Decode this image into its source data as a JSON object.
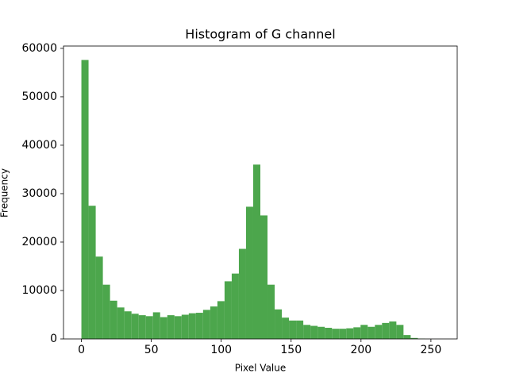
{
  "chart_data": {
    "type": "histogram",
    "title": "Histogram of G channel",
    "xlabel": "Pixel Value",
    "ylabel": "Frequency",
    "color": "#4ca64c",
    "bins": [
      0,
      5.12,
      10.24,
      15.36,
      20.48,
      25.6,
      30.72,
      35.84,
      40.96,
      46.08,
      51.2,
      56.32,
      61.44,
      66.56,
      71.68,
      76.8,
      81.92,
      87.04,
      92.16,
      97.28,
      102.4,
      107.52,
      112.64,
      117.76,
      122.88,
      128,
      133.12,
      138.24,
      143.36,
      148.48,
      153.6,
      158.72,
      163.84,
      168.96,
      174.08,
      179.2,
      184.32,
      189.44,
      194.56,
      199.68,
      204.8,
      209.92,
      215.04,
      220.16,
      225.28,
      230.4,
      235.52,
      240.64,
      245.76,
      250.88,
      256
    ],
    "values": [
      57600,
      27500,
      17000,
      11200,
      7900,
      6500,
      5700,
      5200,
      4900,
      4700,
      5500,
      4500,
      4900,
      4700,
      5000,
      5300,
      5400,
      6000,
      6700,
      7800,
      11900,
      13500,
      18600,
      27300,
      36000,
      25500,
      11200,
      6100,
      4400,
      3800,
      3800,
      2900,
      2700,
      2500,
      2300,
      2100,
      2100,
      2200,
      2400,
      2900,
      2500,
      2900,
      3300,
      3600,
      2900,
      800,
      200,
      50,
      10,
      0
    ],
    "xlim": [
      -12.8,
      268.8
    ],
    "ylim": [
      0,
      60480
    ],
    "xticks": [
      0,
      50,
      100,
      150,
      200,
      250
    ],
    "yticks": [
      0,
      10000,
      20000,
      30000,
      40000,
      50000,
      60000
    ],
    "grid": false
  }
}
